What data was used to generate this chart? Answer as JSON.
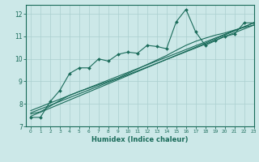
{
  "xlabel": "Humidex (Indice chaleur)",
  "bg_color": "#cce8e8",
  "line_color": "#1a6b5a",
  "grid_color": "#aacfcf",
  "x_min": -0.5,
  "x_max": 23,
  "y_min": 7,
  "y_max": 12.4,
  "line1_x": [
    0,
    1,
    2,
    3,
    4,
    5,
    6,
    7,
    8,
    9,
    10,
    11,
    12,
    13,
    14,
    15,
    16,
    17,
    18,
    19,
    20,
    21,
    22,
    23
  ],
  "line1_y": [
    7.4,
    7.4,
    8.1,
    8.6,
    9.35,
    9.6,
    9.6,
    10.0,
    9.9,
    10.2,
    10.3,
    10.25,
    10.6,
    10.55,
    10.45,
    11.65,
    12.2,
    11.2,
    10.6,
    10.8,
    11.0,
    11.1,
    11.6,
    11.6
  ],
  "line2_x": [
    0,
    1,
    2,
    3,
    4,
    5,
    6,
    7,
    8,
    9,
    10,
    11,
    12,
    13,
    14,
    15,
    16,
    17,
    18,
    19,
    20,
    21,
    22,
    23
  ],
  "line2_y": [
    7.55,
    7.65,
    7.9,
    8.15,
    8.38,
    8.55,
    8.7,
    8.85,
    9.0,
    9.15,
    9.35,
    9.55,
    9.75,
    9.95,
    10.15,
    10.38,
    10.6,
    10.78,
    10.92,
    11.05,
    11.15,
    11.28,
    11.4,
    11.5
  ],
  "line3_x": [
    0,
    23
  ],
  "line3_y": [
    7.45,
    11.6
  ],
  "line4_x": [
    0,
    23
  ],
  "line4_y": [
    7.6,
    11.5
  ],
  "line5_x": [
    0,
    23
  ],
  "line5_y": [
    7.7,
    11.6
  ],
  "yticks": [
    7,
    8,
    9,
    10,
    11,
    12
  ],
  "xticks": [
    0,
    1,
    2,
    3,
    4,
    5,
    6,
    7,
    8,
    9,
    10,
    11,
    12,
    13,
    14,
    15,
    16,
    17,
    18,
    19,
    20,
    21,
    22,
    23
  ]
}
